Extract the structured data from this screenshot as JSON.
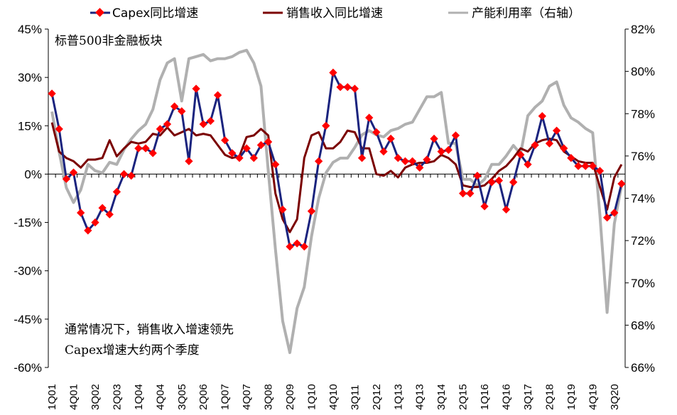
{
  "chart_data": {
    "type": "line",
    "title": "",
    "subtitle_label": "标普500非金融板块",
    "annotation_lines": [
      "通常情况下，销售收入增速领先",
      "Capex增速大约两个季度"
    ],
    "xlabel": "",
    "ylabel_left": "",
    "ylabel_right": "",
    "ylim_left": [
      -60,
      45
    ],
    "ylim_right": [
      66,
      82
    ],
    "yticks_left": [
      "45%",
      "30%",
      "15%",
      "0%",
      "-15%",
      "-30%",
      "-45%",
      "-60%"
    ],
    "yticks_left_values": [
      45,
      30,
      15,
      0,
      -15,
      -30,
      -45,
      -60
    ],
    "yticks_right": [
      "82%",
      "80%",
      "78%",
      "76%",
      "74%",
      "72%",
      "70%",
      "68%",
      "66%"
    ],
    "yticks_right_values": [
      82,
      80,
      78,
      76,
      74,
      72,
      70,
      68,
      66
    ],
    "x_start": "1Q01",
    "x_tick_labels": [
      "1Q01",
      "4Q01",
      "3Q02",
      "2Q03",
      "1Q04",
      "4Q04",
      "3Q05",
      "2Q06",
      "1Q07",
      "4Q07",
      "3Q08",
      "2Q09",
      "1Q10",
      "4Q10",
      "3Q11",
      "2Q12",
      "1Q13",
      "4Q13",
      "3Q14",
      "2Q15",
      "1Q16",
      "4Q16",
      "3Q17",
      "2Q18",
      "1Q19",
      "4Q19",
      "3Q20"
    ],
    "legend_position": "top",
    "grid": false,
    "series": [
      {
        "name": "Capex同比增速",
        "axis": "left",
        "color": "#1a237e",
        "marker_color": "#ff0000",
        "values": [
          25,
          14,
          -1.5,
          0.5,
          -12,
          -17.5,
          -15,
          -10.5,
          -12.5,
          -5.5,
          0,
          -0.5,
          8,
          8,
          6.5,
          14,
          15.5,
          21,
          19.5,
          4,
          26.5,
          15.5,
          16.5,
          24.5,
          10.5,
          6.5,
          5,
          8,
          5,
          9,
          10,
          3,
          -11,
          -22.5,
          -21.5,
          -22.5,
          -11.5,
          4,
          15,
          31.5,
          27,
          27,
          26.5,
          5,
          17.5,
          13,
          7,
          11,
          5,
          4,
          4,
          2,
          4.5,
          11,
          7,
          7.5,
          12,
          -6,
          -6,
          -0.5,
          -10,
          -2.5,
          -2,
          -11,
          -2.5,
          6,
          3,
          9,
          18,
          9.5,
          13.5,
          8,
          5,
          2.5,
          2.5,
          2.5,
          1,
          -13.5,
          -12,
          -3
        ]
      },
      {
        "name": "销售收入同比增速",
        "axis": "left",
        "color": "#7b0000",
        "values": [
          16,
          7,
          5,
          4,
          2,
          4.5,
          4.5,
          5,
          10.5,
          5.5,
          8,
          10,
          9.5,
          10,
          12.5,
          12,
          14.5,
          12,
          13,
          14,
          12,
          12.5,
          12,
          9,
          6,
          5,
          5.5,
          11.5,
          12,
          14,
          12,
          -6,
          -14,
          -18,
          -14,
          5,
          12,
          13,
          8,
          8,
          10,
          13.5,
          13,
          8,
          8,
          0,
          -0.5,
          1,
          -1,
          2,
          3,
          3.5,
          3.5,
          4,
          6,
          5,
          3,
          -3.5,
          -4,
          -4,
          -3.5,
          -1.5,
          1,
          2.5,
          5,
          8,
          7,
          9.5,
          10.5,
          11,
          10.5,
          7,
          5.5,
          4,
          3.5,
          3.5,
          -4,
          -11,
          -1,
          3
        ]
      },
      {
        "name": "产能利用率（右轴）",
        "axis": "right",
        "color": "#b0b0b0",
        "values": [
          78.1,
          76.2,
          74.5,
          73.8,
          74.4,
          75.6,
          75.3,
          75.2,
          75.7,
          75.6,
          76.3,
          76.8,
          77.2,
          77.5,
          78.2,
          79.6,
          80.4,
          80.6,
          78.6,
          80.6,
          80.7,
          80.8,
          80.5,
          80.6,
          80.6,
          80.7,
          80.9,
          81.0,
          80.4,
          79.3,
          75.3,
          71.6,
          68.2,
          66.7,
          68.8,
          69.8,
          72.2,
          74.0,
          75.2,
          75.7,
          75.9,
          75.9,
          76.4,
          77.0,
          77.2,
          77.0,
          76.9,
          77.2,
          77.3,
          77.5,
          77.6,
          78.2,
          78.8,
          78.8,
          79.0,
          76.6,
          76.6,
          74.9,
          74.9,
          74.6,
          74.9,
          75.6,
          75.6,
          76.0,
          76.5,
          76.1,
          77.9,
          78.3,
          78.6,
          79.3,
          79.5,
          78.4,
          77.8,
          77.6,
          77.3,
          77.1,
          73.2,
          68.6,
          72.8,
          74.6
        ]
      }
    ]
  }
}
